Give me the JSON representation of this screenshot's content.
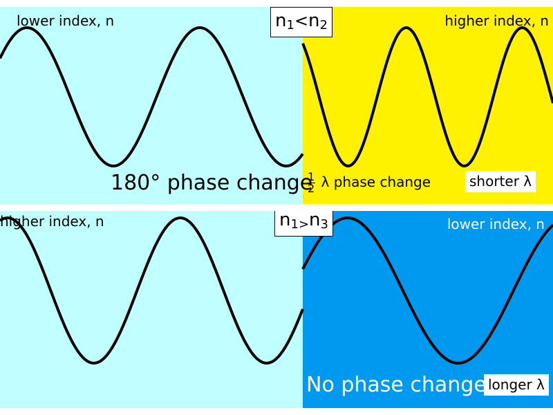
{
  "colors": {
    "light_cyan": "#BFFFFF",
    "yellow": "#FFF200",
    "blue": "#0099F0",
    "wave": "#000000"
  },
  "top_panel": {
    "left_label": "lower index, n",
    "right_label": "higher index, n",
    "comparison": {
      "n1": "n",
      "n1_sub": "1",
      "operator": "<",
      "n2": "n",
      "n2_sub": "2"
    },
    "phase_label": "180° phase change",
    "half_num": "1",
    "half_den": "2",
    "lambda_phase_label": "λ phase change",
    "wavelength_label": "shorter λ"
  },
  "bottom_panel": {
    "left_label": "higher index, n",
    "right_label": "lower index, n",
    "comparison": {
      "n1": "n",
      "n1_sub": "1",
      "operator": ">",
      "n3": "n",
      "n3_sub": "3"
    },
    "phase_label": "No phase change",
    "wavelength_label": "longer λ"
  },
  "icons": {
    "top_wave": "sine-wave-icon",
    "bottom_wave": "sine-wave-icon"
  }
}
